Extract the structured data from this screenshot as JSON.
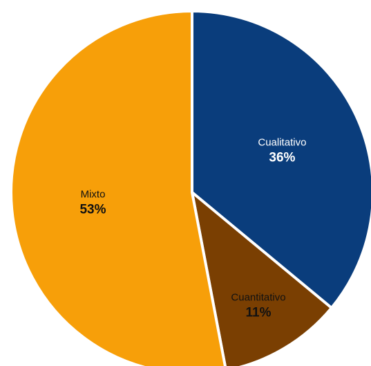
{
  "chart_data": {
    "type": "pie",
    "categories": [
      "Cualitativo",
      "Cuantitativo",
      "Mixto"
    ],
    "values": [
      36,
      11,
      53
    ],
    "value_labels": [
      "36%",
      "11%",
      "53%"
    ],
    "colors": [
      "#0a3d7c",
      "#7a3f02",
      "#f79f09"
    ],
    "label_colors": [
      "#ffffff",
      "#111111",
      "#111111"
    ],
    "title": "",
    "legend": "none"
  }
}
